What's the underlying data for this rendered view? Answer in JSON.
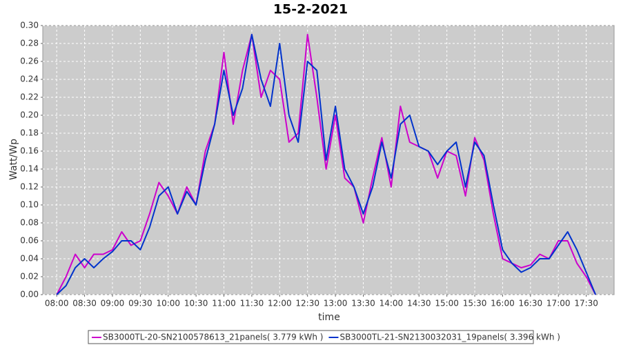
{
  "chart_data": {
    "type": "line",
    "title": "15-2-2021",
    "x_label": "time",
    "y_label": "Watt/Wp",
    "x": [
      "08:00",
      "08:10",
      "08:20",
      "08:30",
      "08:40",
      "08:50",
      "09:00",
      "09:10",
      "09:20",
      "09:30",
      "09:40",
      "09:50",
      "10:00",
      "10:10",
      "10:20",
      "10:30",
      "10:40",
      "10:50",
      "11:00",
      "11:10",
      "11:20",
      "11:30",
      "11:40",
      "11:50",
      "12:00",
      "12:10",
      "12:20",
      "12:30",
      "12:40",
      "12:50",
      "13:00",
      "13:10",
      "13:20",
      "13:30",
      "13:40",
      "13:50",
      "14:00",
      "14:10",
      "14:20",
      "14:30",
      "14:40",
      "14:50",
      "15:00",
      "15:10",
      "15:20",
      "15:30",
      "15:40",
      "15:50",
      "16:00",
      "16:10",
      "16:20",
      "16:30",
      "16:40",
      "16:50",
      "17:00",
      "17:10",
      "17:20",
      "17:30",
      "17:40"
    ],
    "series": [
      {
        "name": "SB3000TL-20-SN2100578613_21panels( 3.779 kWh )",
        "color": "#cc00cc",
        "values": [
          0.0,
          0.02,
          0.045,
          0.03,
          0.045,
          0.045,
          0.05,
          0.07,
          0.055,
          0.06,
          0.09,
          0.125,
          0.11,
          0.09,
          0.12,
          0.1,
          0.16,
          0.19,
          0.27,
          0.19,
          0.25,
          0.29,
          0.22,
          0.25,
          0.24,
          0.17,
          0.18,
          0.29,
          0.22,
          0.14,
          0.2,
          0.13,
          0.12,
          0.08,
          0.13,
          0.175,
          0.12,
          0.21,
          0.17,
          0.165,
          0.16,
          0.13,
          0.16,
          0.155,
          0.11,
          0.175,
          0.15,
          0.09,
          0.04,
          0.035,
          0.03,
          0.033,
          0.045,
          0.04,
          0.06,
          0.06,
          0.035,
          0.02,
          0.0
        ]
      },
      {
        "name": "SB3000TL-21-SN2130032031_19panels( 3.396 kWh )",
        "color": "#0033cc",
        "values": [
          0.0,
          0.01,
          0.03,
          0.04,
          0.03,
          0.04,
          0.048,
          0.06,
          0.06,
          0.05,
          0.075,
          0.11,
          0.12,
          0.09,
          0.115,
          0.1,
          0.15,
          0.19,
          0.25,
          0.2,
          0.23,
          0.29,
          0.24,
          0.21,
          0.28,
          0.2,
          0.17,
          0.26,
          0.25,
          0.15,
          0.21,
          0.14,
          0.12,
          0.09,
          0.12,
          0.17,
          0.13,
          0.19,
          0.2,
          0.165,
          0.16,
          0.145,
          0.16,
          0.17,
          0.12,
          0.17,
          0.155,
          0.1,
          0.05,
          0.035,
          0.025,
          0.03,
          0.04,
          0.04,
          0.055,
          0.07,
          0.05,
          0.025,
          0.0
        ]
      }
    ],
    "xlim": [
      "07:45",
      "18:00"
    ],
    "xticks": [
      "08:00",
      "08:30",
      "09:00",
      "09:30",
      "10:00",
      "10:30",
      "11:00",
      "11:30",
      "12:00",
      "12:30",
      "13:00",
      "13:30",
      "14:00",
      "14:30",
      "15:00",
      "15:30",
      "16:00",
      "16:30",
      "17:00",
      "17:30"
    ],
    "ylim": [
      0,
      0.3
    ],
    "yticks": [
      {
        "value": 0,
        "label": "0.00"
      },
      {
        "value": 0.02,
        "label": "0.02"
      },
      {
        "value": 0.04,
        "label": "0.04"
      },
      {
        "value": 0.06,
        "label": "0.06"
      },
      {
        "value": 0.08,
        "label": "0.08"
      },
      {
        "value": 0.1,
        "label": "0.10"
      },
      {
        "value": 0.12,
        "label": "0.12"
      },
      {
        "value": 0.14,
        "label": "0.14"
      },
      {
        "value": 0.16,
        "label": "0.16"
      },
      {
        "value": 0.18,
        "label": "0.18"
      },
      {
        "value": 0.2,
        "label": "0.20"
      },
      {
        "value": 0.22,
        "label": "0.22"
      },
      {
        "value": 0.24,
        "label": "0.24"
      },
      {
        "value": 0.26,
        "label": "0.26"
      },
      {
        "value": 0.28,
        "label": "0.28"
      },
      {
        "value": 0.3,
        "label": "0.30"
      }
    ],
    "grid": true
  }
}
